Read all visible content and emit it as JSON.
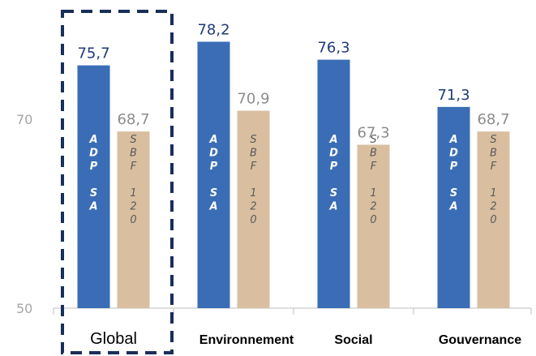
{
  "chart_data": {
    "type": "bar",
    "title": "",
    "xlabel": "",
    "ylabel": "",
    "ylim": [
      50,
      80
    ],
    "yticks": [
      50,
      70
    ],
    "categories": [
      "Global",
      "Environnement",
      "Social",
      "Gouvernance"
    ],
    "series": [
      {
        "name": "ADP SA",
        "values": [
          75.7,
          78.2,
          76.3,
          71.3
        ],
        "value_labels": [
          "75,7",
          "78,2",
          "76,3",
          "71,3"
        ],
        "color": "#3a6db5",
        "label_color": "#1f3a7a"
      },
      {
        "name": "SBF 120",
        "values": [
          68.7,
          70.9,
          67.3,
          68.7
        ],
        "value_labels": [
          "68,7",
          "70,9",
          "67,3",
          "68,7"
        ],
        "color": "#d9bf9f",
        "label_color": "#8c8c8c"
      }
    ],
    "grid": false,
    "legend": "none (series names shown vertically inside bars)",
    "highlight": {
      "category": "Global",
      "style": "dashed-box",
      "color": "#1a2e5a"
    },
    "axis_color": "#bfbfbf",
    "tick_label_color": "#a6a6a6"
  }
}
